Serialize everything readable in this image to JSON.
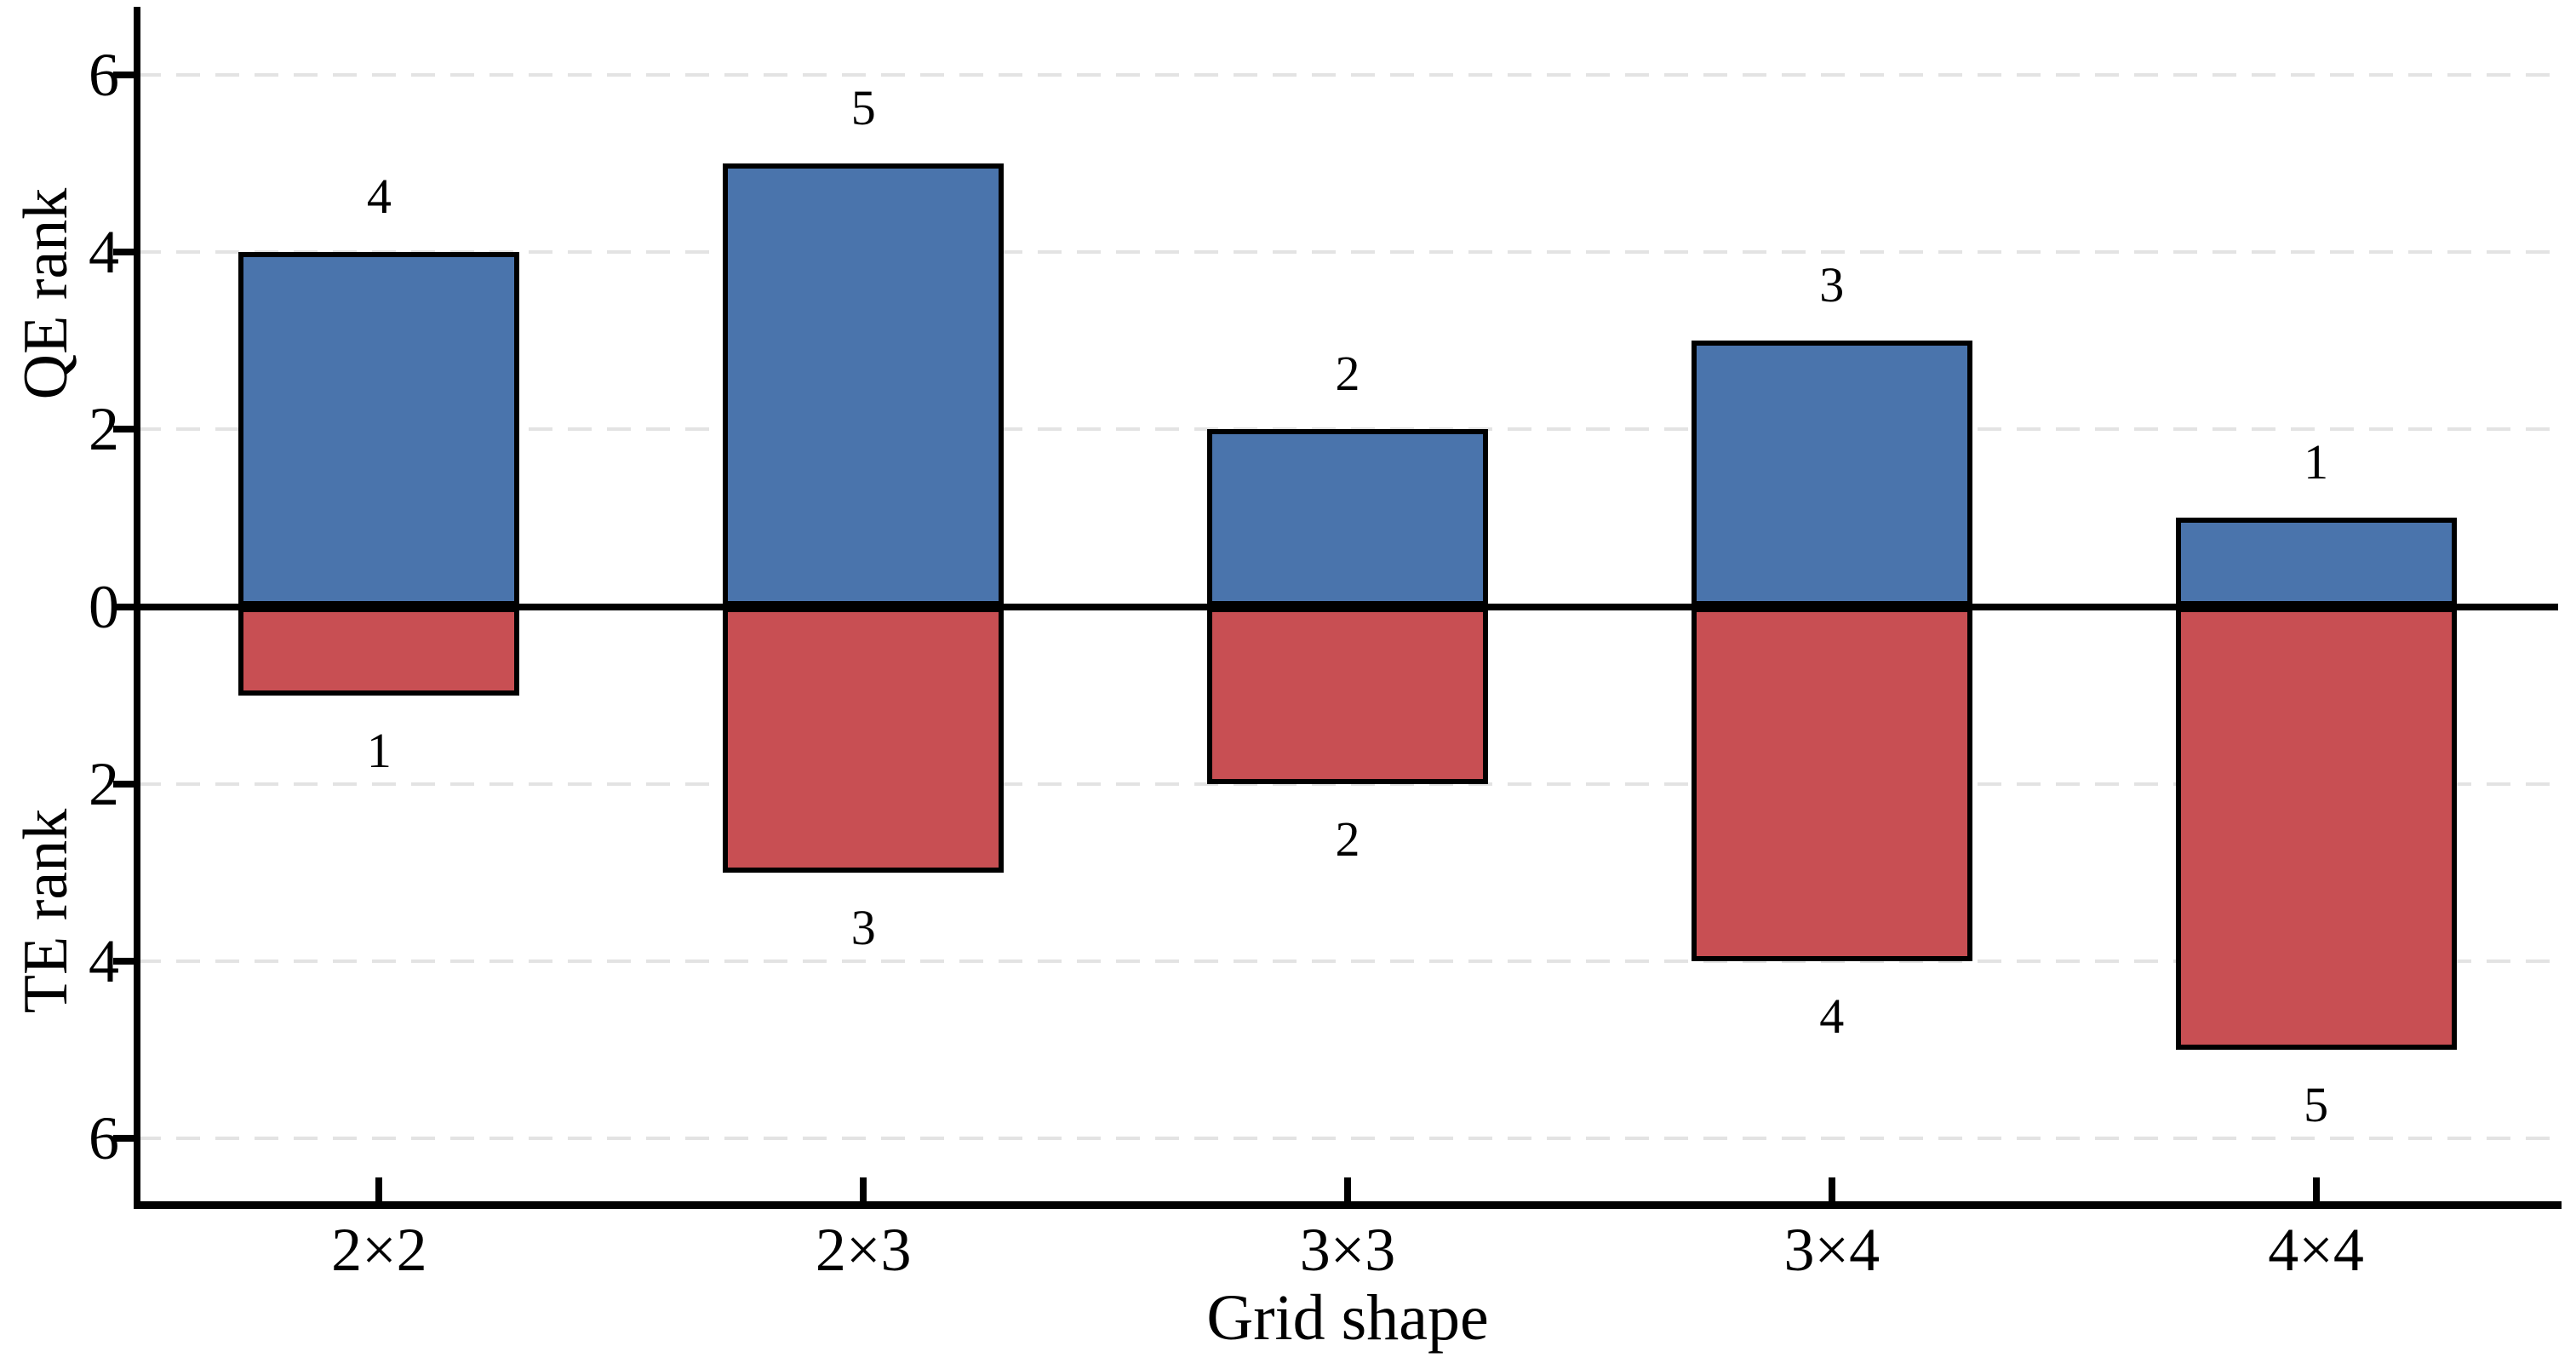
{
  "chart_data": {
    "type": "bar",
    "subtype": "diverging-mirrored",
    "title": "",
    "categories": [
      "2×2",
      "2×3",
      "3×3",
      "3×4",
      "4×4"
    ],
    "series": [
      {
        "name": "QE rank",
        "direction": "up",
        "color": "#4A74AC",
        "values": [
          4,
          5,
          2,
          3,
          1
        ]
      },
      {
        "name": "TE rank",
        "direction": "down",
        "color": "#C84F53",
        "values": [
          1,
          3,
          2,
          4,
          5
        ]
      }
    ],
    "bar_value_labels_shown": true,
    "xlabel": "Grid shape",
    "ylabel_top": "QE rank",
    "ylabel_bottom": "TE rank",
    "yticks": [
      {
        "pos": 6,
        "label": "6"
      },
      {
        "pos": 4,
        "label": "4"
      },
      {
        "pos": 2,
        "label": "2"
      },
      {
        "pos": 0,
        "label": "0"
      },
      {
        "pos": -2,
        "label": "2"
      },
      {
        "pos": -4,
        "label": "4"
      },
      {
        "pos": -6,
        "label": "6"
      }
    ],
    "ylim": [
      -6.75,
      6.75
    ],
    "grid": "horizontal-dashed",
    "legend": "none",
    "colors": {
      "qe_bar": "#4A74AC",
      "te_bar": "#C84F53",
      "bar_edge": "#000000",
      "gridline": "#E3E3E3",
      "axis": "#000000",
      "background": "#FFFFFF"
    }
  }
}
